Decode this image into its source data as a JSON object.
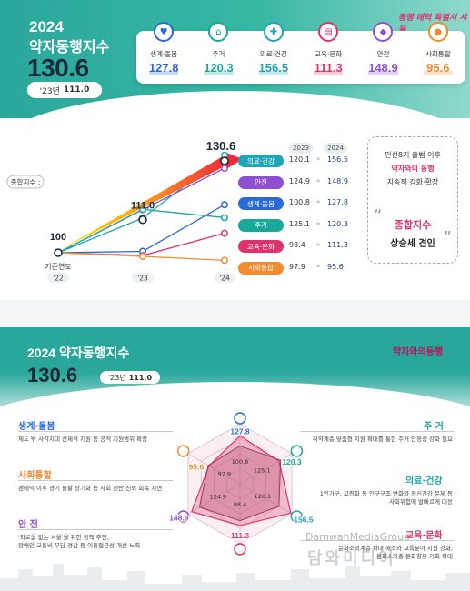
{
  "top": {
    "year": "2024",
    "index_name": "약자동행지수",
    "index_value": "130.6",
    "prev_label": "'23년",
    "prev_value": "111.0",
    "slogan": "동행 매력 특별시 서울",
    "categories": [
      {
        "label": "생계·돌봄",
        "value": "127.8",
        "color": "#2a6ad8",
        "icon": "care-icon"
      },
      {
        "label": "주거",
        "value": "120.3",
        "color": "#1aa89a",
        "icon": "house-icon"
      },
      {
        "label": "의료·건강",
        "value": "156.5",
        "color": "#20a4b8",
        "icon": "health-icon"
      },
      {
        "label": "교육·문화",
        "value": "111.3",
        "color": "#e0336e",
        "icon": "book-icon"
      },
      {
        "label": "안전",
        "value": "148.9",
        "color": "#8e4fd0",
        "icon": "shield-icon"
      },
      {
        "label": "사회통합",
        "value": "95.6",
        "color": "#f28a2e",
        "icon": "people-icon"
      }
    ],
    "composite_label": "종합지수",
    "base_year_label": "기준연도",
    "legend_year_2023": "2023",
    "legend_year_2024": "2024",
    "callout": {
      "line1": "민선8기 출범 이후",
      "line2": "약자와의 동행",
      "line3": "지속적 강화·확장",
      "highlight": "종합지수",
      "result": "상승세 견인"
    }
  },
  "bottom": {
    "title": "2024 약자동행지수",
    "index_value": "130.6",
    "prev_label": "'23년",
    "prev_value": "111.0",
    "logo_text": "약자와의동행",
    "items": [
      {
        "label": "생계·돌봄",
        "desc": "제도 밖 사각지대 선제적 지원 등 공적 지원범위 확장",
        "color": "#2a6ad8"
      },
      {
        "label": "사회통합",
        "desc": "팬데믹 이후 경기 불황 장기화 등 사회 전반 신뢰 회복 지연",
        "color": "#f28a2e"
      },
      {
        "label": "안 전",
        "desc1": "'외로움 없는 서울'을 위한 정책 추진,",
        "desc2": "장애인 교통비 부담 경감 등 이동접근성 개선 노력",
        "color": "#8e4fd0"
      },
      {
        "label": "주 거",
        "desc": "취약계층 맞춤형 지원 확대를 통한 주거 안정성 강화 필요",
        "color": "#1aa89a"
      },
      {
        "label": "의료·건강",
        "desc1": "1인가구, 고령화 등 인구구조 변화와 정신건강 문제 등",
        "desc2": "사회위험에 발빠르게 대응",
        "color": "#20a4b8"
      },
      {
        "label": "교육·문화",
        "desc1": "문화소외계층 확대 해소와 교육분야 지원 강화,",
        "desc2": "문화소외층 문화향유 기회 확대",
        "color": "#e0336e"
      }
    ],
    "watermark_en": "DamwahMediaGroup",
    "watermark_ko": "담와미디어"
  },
  "chart_data": [
    {
      "type": "line",
      "x": [
        "'22",
        "'23",
        "'24"
      ],
      "series": [
        {
          "name": "종합지수",
          "values": [
            100,
            111.0,
            130.6
          ],
          "color": "#f28a2e"
        },
        {
          "name": "의료·건강",
          "values": [
            100,
            120.1,
            156.5
          ],
          "color": "#20a4b8"
        },
        {
          "name": "안전",
          "values": [
            100,
            124.9,
            148.9
          ],
          "color": "#8e4fd0"
        },
        {
          "name": "생계·돌봄",
          "values": [
            100,
            100.8,
            127.8
          ],
          "color": "#2a6ad8"
        },
        {
          "name": "주거",
          "values": [
            100,
            125.1,
            120.3
          ],
          "color": "#1aa89a"
        },
        {
          "name": "교육·문화",
          "values": [
            100,
            98.4,
            111.3
          ],
          "color": "#e0336e"
        },
        {
          "name": "사회통합",
          "values": [
            100,
            97.9,
            95.6
          ],
          "color": "#f28a2e"
        }
      ],
      "value_labels": {
        "2022": "100",
        "2023": "111.0",
        "2024": "130.6"
      },
      "grid": false,
      "legend_position": "right"
    },
    {
      "type": "radar",
      "axes": [
        "생계·돌봄",
        "주거",
        "의료·건강",
        "교육·문화",
        "안전",
        "사회통합"
      ],
      "series": [
        {
          "name": "2024",
          "values": [
            127.8,
            120.3,
            156.5,
            111.3,
            148.9,
            95.6
          ]
        },
        {
          "name": "2023",
          "values": [
            100.8,
            125.1,
            120.1,
            98.4,
            124.9,
            97.9
          ]
        }
      ]
    }
  ]
}
